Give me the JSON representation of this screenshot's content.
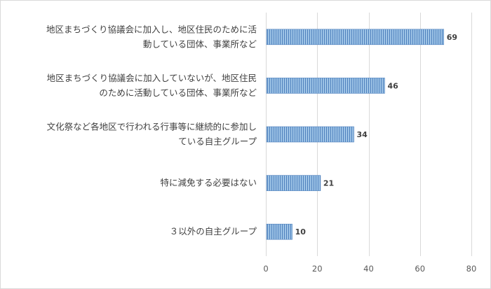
{
  "chart_data": {
    "type": "bar",
    "orientation": "horizontal",
    "categories": [
      [
        "地区まちづくり協議会に加入し、地区住民のために活",
        "動している団体、事業所など"
      ],
      [
        "地区まちづくり協議会に加入していないが、地区住民",
        "のために活動している団体、事業所など"
      ],
      [
        "文化祭など各地区で行われる行事等に継続的に参加し",
        "ている自主グループ"
      ],
      [
        "特に減免する必要はない"
      ],
      [
        "３以外の自主グループ"
      ]
    ],
    "values": [
      69,
      46,
      34,
      21,
      10
    ],
    "xlim": [
      0,
      80
    ],
    "xticks": [
      0,
      20,
      40,
      60,
      80
    ],
    "title": "",
    "xlabel": "",
    "ylabel": "",
    "grid": "vertical",
    "legend": "none",
    "colors": {
      "bar_fill": "#9dc3e6",
      "bar_stripe": "#4f81bd",
      "grid": "#d9d9d9",
      "text": "#404040"
    }
  }
}
